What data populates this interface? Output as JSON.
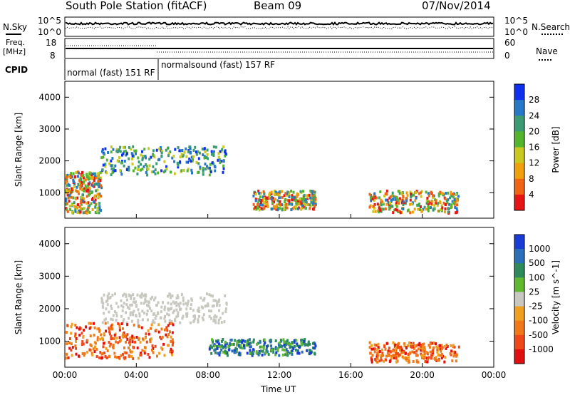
{
  "header": {
    "title": "South Pole Station (fitACF)",
    "beam": "Beam 09",
    "date": "07/Nov/2014"
  },
  "status_panels": {
    "nsky_label": "N.Sky",
    "nsearch_label": "N.Search",
    "freq_label_1": "Freq.",
    "freq_label_2": "[MHz]",
    "nave_label": "Nave",
    "cpid_label": "CPID",
    "noise_left_ticks": [
      "10^5",
      "10^0"
    ],
    "noise_right_ticks": [
      "10^5",
      "10^0"
    ],
    "freq_ticks": [
      "18",
      "8"
    ],
    "nave_ticks": [
      "60",
      "0"
    ],
    "cpid_segments": [
      {
        "label": "normal (fast) 151 RF",
        "start_hour": 0
      },
      {
        "label": "normalsound (fast) 157 RF",
        "start_hour": 5.4
      }
    ]
  },
  "chart_data": [
    {
      "type": "heatmap",
      "panel": "power",
      "ylabel": "Slant Range [km]",
      "yticks": [
        "1000",
        "2000",
        "3000",
        "4000"
      ],
      "ylim": [
        200,
        4500
      ],
      "xlim": [
        0,
        24
      ],
      "colorbar_label": "Power [dB]",
      "colorbar_ticks": [
        "4",
        "8",
        "12",
        "16",
        "20",
        "24",
        "28"
      ],
      "colorbar_colors": [
        "#1030f0",
        "#2878c8",
        "#3c9b73",
        "#55b42d",
        "#c8c81e",
        "#f0a00a",
        "#f06414",
        "#e61414"
      ],
      "features": [
        {
          "hours": [
            0,
            2
          ],
          "range_km": [
            400,
            1700
          ],
          "level": "high"
        },
        {
          "hours": [
            2,
            9
          ],
          "range_km": [
            1600,
            2500
          ],
          "level": "medium"
        },
        {
          "hours": [
            10.5,
            14
          ],
          "range_km": [
            500,
            1100
          ],
          "level": "high"
        },
        {
          "hours": [
            17,
            22
          ],
          "range_km": [
            400,
            1100
          ],
          "level": "high"
        }
      ]
    },
    {
      "type": "heatmap",
      "panel": "velocity",
      "xlabel": "Time UT",
      "xticks": [
        "00:00",
        "04:00",
        "08:00",
        "12:00",
        "16:00",
        "20:00",
        "00:00"
      ],
      "ylabel": "Slant Range [km]",
      "yticks": [
        "1000",
        "2000",
        "3000",
        "4000"
      ],
      "ylim": [
        200,
        4500
      ],
      "xlim": [
        0,
        24
      ],
      "colorbar_label": "Velocity [m s^-1]",
      "colorbar_ticks": [
        "1000",
        "500",
        "100",
        "25",
        "-25",
        "-100",
        "-500",
        "-1000"
      ],
      "colorbar_colors": [
        "#1a3cd6",
        "#2a6fb8",
        "#2e8a5a",
        "#60b830",
        "#c8c8c0",
        "#f0a020",
        "#f07818",
        "#f04818",
        "#e01010"
      ],
      "features": [
        {
          "hours": [
            2,
            9
          ],
          "range_km": [
            1600,
            2500
          ],
          "velocity": "ground scatter"
        },
        {
          "hours": [
            0,
            6
          ],
          "range_km": [
            500,
            1600
          ],
          "velocity": "negative (away)"
        },
        {
          "hours": [
            8,
            14
          ],
          "range_km": [
            600,
            1100
          ],
          "velocity": "positive (toward)"
        },
        {
          "hours": [
            17,
            22
          ],
          "range_km": [
            400,
            1000
          ],
          "velocity": "negative (away)"
        }
      ]
    }
  ]
}
